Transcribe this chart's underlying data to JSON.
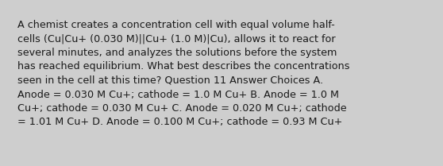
{
  "background_color": "#cecece",
  "text_color": "#1a1a1a",
  "font_size": 9.2,
  "font_family": "DejaVu Sans",
  "text": "A chemist creates a concentration cell with equal volume half-\ncells (Cu|Cu+ (0.030 M)||Cu+ (1.0 M)|Cu), allows it to react for\nseveral minutes, and analyzes the solutions before the system\nhas reached equilibrium. What best describes the concentrations\nseen in the cell at this time? Question 11 Answer Choices A.\nAnode = 0.030 M Cu+; cathode = 1.0 M Cu+ B. Anode = 1.0 M\nCu+; cathode = 0.030 M Cu+ C. Anode = 0.020 M Cu+; cathode\n= 1.01 M Cu+ D. Anode = 0.100 M Cu+; cathode = 0.93 M Cu+",
  "figsize": [
    5.58,
    2.09
  ],
  "dpi": 100
}
